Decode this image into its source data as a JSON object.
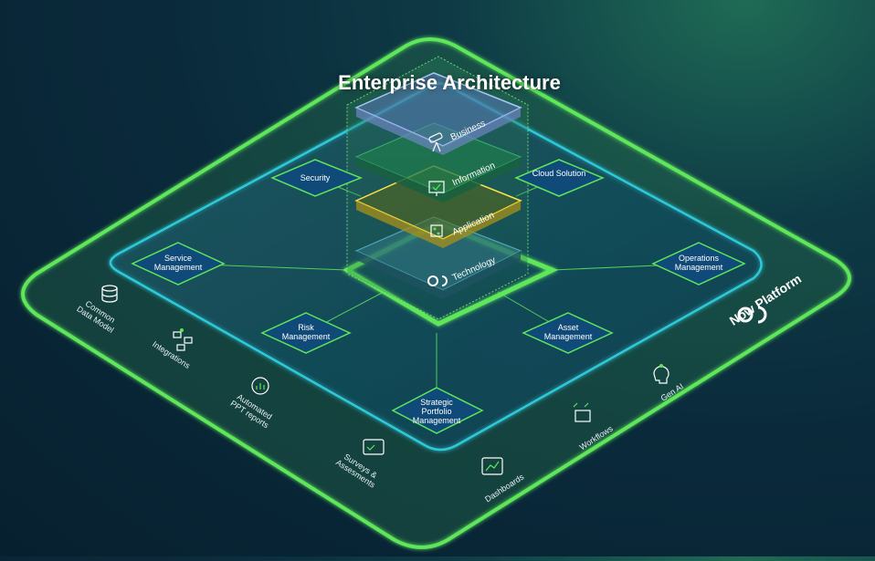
{
  "title": "Enterprise Architecture",
  "platform": {
    "label": "Now Platform",
    "icon": "now-logo-icon"
  },
  "colors": {
    "platform_border": "#5ee65a",
    "inner_border": "#2ec9d8",
    "node_fill": "#0f4a78",
    "node_border": "#5ee65a",
    "business_layer": "#a9c6ff",
    "information_layer": "#2fae6a",
    "application_layer": "#ffe34d",
    "technology_layer": "#4fa7b9"
  },
  "stack_layers": [
    {
      "label": "Business",
      "icon": "telescope-icon"
    },
    {
      "label": "Information",
      "icon": "monitor-check-icon"
    },
    {
      "label": "Application",
      "icon": "workflow-icon"
    },
    {
      "label": "Technology",
      "icon": "now-logo-icon"
    }
  ],
  "nodes": [
    {
      "id": "security",
      "label": "Security"
    },
    {
      "id": "cloud",
      "label": "Cloud Solution"
    },
    {
      "id": "service",
      "label": "Service Management"
    },
    {
      "id": "operations",
      "label": "Operations Management"
    },
    {
      "id": "risk",
      "label": "Risk Management"
    },
    {
      "id": "asset",
      "label": "Asset Management"
    },
    {
      "id": "spm",
      "label": "Strategic Portfolio Management"
    }
  ],
  "capabilities": [
    {
      "label": "Common Data Model",
      "icon": "database-icon"
    },
    {
      "label": "Integrations",
      "icon": "integrations-icon"
    },
    {
      "label": "Automated PPT reports",
      "icon": "report-icon"
    },
    {
      "label": "Surveys & Assesments",
      "icon": "survey-icon"
    },
    {
      "label": "Dashboards",
      "icon": "dashboard-icon"
    },
    {
      "label": "Workflows",
      "icon": "workflow-icon"
    },
    {
      "label": "Gen AI",
      "icon": "ai-head-icon"
    }
  ]
}
